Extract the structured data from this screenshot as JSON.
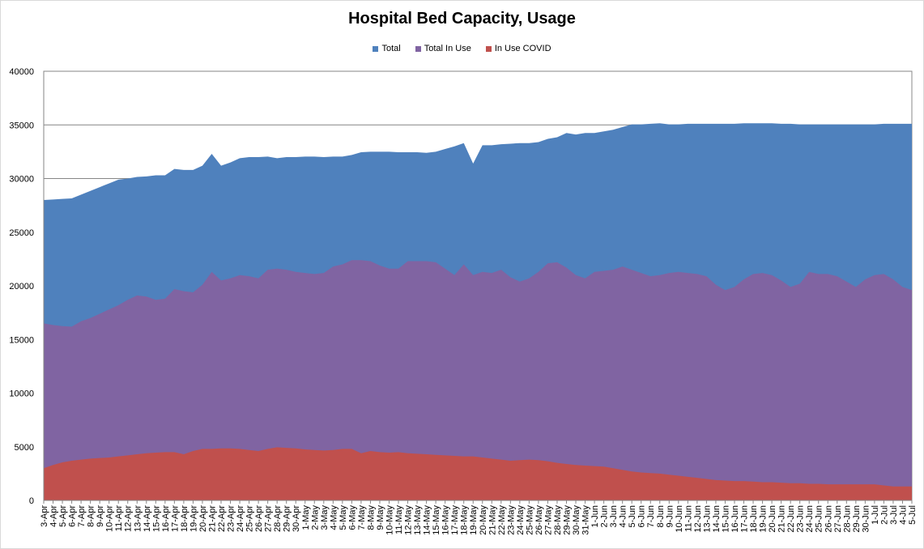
{
  "chart_data": {
    "type": "area",
    "title": "Hospital Bed Capacity, Usage",
    "xlabel": "",
    "ylabel": "",
    "ylim": [
      0,
      40000
    ],
    "yticks": [
      0,
      5000,
      10000,
      15000,
      20000,
      25000,
      30000,
      35000,
      40000
    ],
    "grid": "horizontal",
    "legend_position": "top",
    "categories": [
      "3-Apr",
      "4-Apr",
      "5-Apr",
      "6-Apr",
      "7-Apr",
      "8-Apr",
      "9-Apr",
      "10-Apr",
      "11-Apr",
      "12-Apr",
      "13-Apr",
      "14-Apr",
      "15-Apr",
      "16-Apr",
      "17-Apr",
      "18-Apr",
      "19-Apr",
      "20-Apr",
      "21-Apr",
      "22-Apr",
      "23-Apr",
      "24-Apr",
      "25-Apr",
      "26-Apr",
      "27-Apr",
      "28-Apr",
      "29-Apr",
      "30-Apr",
      "1-May",
      "2-May",
      "3-May",
      "4-May",
      "5-May",
      "6-May",
      "7-May",
      "8-May",
      "9-May",
      "10-May",
      "11-May",
      "12-May",
      "13-May",
      "14-May",
      "15-May",
      "16-May",
      "17-May",
      "18-May",
      "19-May",
      "20-May",
      "21-May",
      "22-May",
      "23-May",
      "24-May",
      "25-May",
      "26-May",
      "27-May",
      "28-May",
      "29-May",
      "30-May",
      "31-May",
      "1-Jun",
      "2-Jun",
      "3-Jun",
      "4-Jun",
      "5-Jun",
      "6-Jun",
      "7-Jun",
      "8-Jun",
      "9-Jun",
      "10-Jun",
      "11-Jun",
      "12-Jun",
      "13-Jun",
      "14-Jun",
      "15-Jun",
      "16-Jun",
      "17-Jun",
      "18-Jun",
      "19-Jun",
      "20-Jun",
      "21-Jun",
      "22-Jun",
      "23-Jun",
      "24-Jun",
      "25-Jun",
      "26-Jun",
      "27-Jun",
      "28-Jun",
      "29-Jun",
      "30-Jun",
      "1-Jul",
      "2-Jul",
      "3-Jul",
      "4-Jul",
      "5-Jul"
    ],
    "label_every": 1,
    "series": [
      {
        "name": "Total",
        "color": "#4f81bd",
        "values": [
          28000,
          28050,
          28100,
          28150,
          28500,
          28850,
          29200,
          29550,
          29900,
          30000,
          30150,
          30200,
          30300,
          30300,
          30900,
          30800,
          30800,
          31200,
          32300,
          31200,
          31500,
          31900,
          32000,
          32000,
          32050,
          31900,
          32000,
          32000,
          32050,
          32050,
          32000,
          32050,
          32050,
          32200,
          32450,
          32500,
          32500,
          32500,
          32450,
          32450,
          32450,
          32400,
          32500,
          32750,
          33000,
          33300,
          31400,
          33100,
          33100,
          33200,
          33250,
          33300,
          33300,
          33400,
          33700,
          33850,
          34250,
          34100,
          34250,
          34250,
          34400,
          34550,
          34800,
          35050,
          35050,
          35100,
          35150,
          35050,
          35050,
          35100,
          35100,
          35100,
          35100,
          35100,
          35100,
          35150,
          35150,
          35150,
          35150,
          35100,
          35100,
          35050,
          35050,
          35050,
          35050,
          35050,
          35050,
          35050,
          35050,
          35050,
          35100,
          35100,
          35100,
          35100
        ]
      },
      {
        "name": "Total In Use",
        "color": "#8064a2",
        "values": [
          16500,
          16350,
          16250,
          16200,
          16700,
          17000,
          17400,
          17800,
          18200,
          18700,
          19100,
          19000,
          18700,
          18800,
          19700,
          19500,
          19400,
          20100,
          21300,
          20500,
          20700,
          21000,
          20900,
          20700,
          21500,
          21600,
          21500,
          21300,
          21200,
          21100,
          21200,
          21800,
          22000,
          22400,
          22400,
          22300,
          21900,
          21600,
          21600,
          22300,
          22300,
          22300,
          22200,
          21600,
          21000,
          22000,
          21000,
          21300,
          21200,
          21500,
          20800,
          20400,
          20700,
          21300,
          22100,
          22200,
          21700,
          21000,
          20700,
          21300,
          21400,
          21500,
          21800,
          21500,
          21200,
          20900,
          21000,
          21200,
          21300,
          21200,
          21100,
          20900,
          20100,
          19600,
          19900,
          20600,
          21100,
          21200,
          21000,
          20500,
          19900,
          20200,
          21300,
          21100,
          21100,
          20900,
          20400,
          19900,
          20600,
          21000,
          21100,
          20600,
          19900,
          19600
        ]
      },
      {
        "name": "In Use COVID",
        "color": "#c0504d",
        "values": [
          3000,
          3300,
          3550,
          3700,
          3800,
          3900,
          3950,
          4000,
          4100,
          4200,
          4300,
          4400,
          4450,
          4500,
          4500,
          4300,
          4600,
          4800,
          4800,
          4850,
          4850,
          4800,
          4700,
          4600,
          4800,
          4950,
          4900,
          4850,
          4750,
          4700,
          4650,
          4700,
          4800,
          4800,
          4400,
          4600,
          4500,
          4450,
          4500,
          4400,
          4350,
          4300,
          4250,
          4200,
          4150,
          4100,
          4100,
          4000,
          3900,
          3800,
          3700,
          3750,
          3800,
          3750,
          3650,
          3500,
          3400,
          3300,
          3250,
          3200,
          3150,
          3000,
          2850,
          2700,
          2600,
          2550,
          2500,
          2400,
          2300,
          2200,
          2100,
          2000,
          1900,
          1850,
          1800,
          1800,
          1750,
          1700,
          1700,
          1650,
          1600,
          1600,
          1550,
          1550,
          1500,
          1500,
          1500,
          1500,
          1500,
          1500,
          1400,
          1300,
          1300,
          1300
        ]
      }
    ]
  }
}
